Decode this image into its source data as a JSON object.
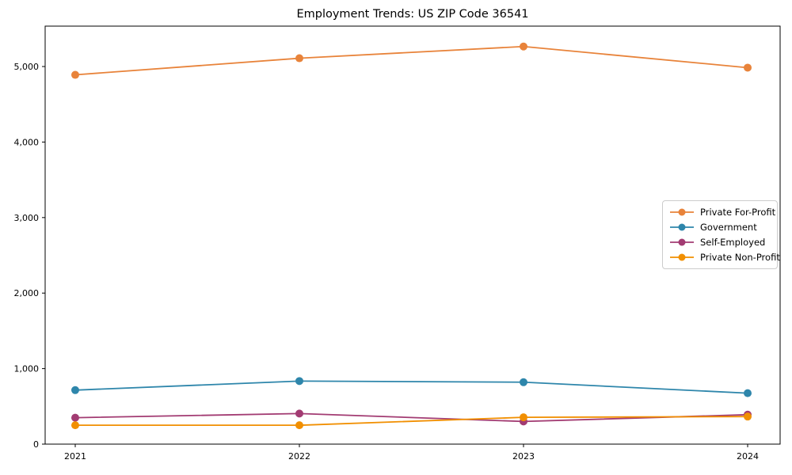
{
  "title": "Employment Trends: US ZIP Code 36541",
  "axes": {
    "x_tick_labels": [
      "2021",
      "2022",
      "2023",
      "2024"
    ],
    "y_tick_labels": [
      "0",
      "1,000",
      "2,000",
      "3,000",
      "4,000",
      "5,000"
    ],
    "y_tick_values": [
      0,
      1000,
      2000,
      3000,
      4000,
      5000
    ]
  },
  "legend": {
    "entries": [
      "Private For-Profit",
      "Government",
      "Self-Employed",
      "Private Non-Profit"
    ]
  },
  "chart_data": {
    "type": "line",
    "title": "Employment Trends: US ZIP Code 36541",
    "categories": [
      "2021",
      "2022",
      "2023",
      "2024"
    ],
    "x": [
      2021,
      2022,
      2023,
      2024
    ],
    "series": [
      {
        "name": "Private For-Profit",
        "color": "#E8833A",
        "values": [
          4890,
          5110,
          5265,
          4985
        ]
      },
      {
        "name": "Government",
        "color": "#2E86AB",
        "values": [
          715,
          835,
          820,
          675
        ]
      },
      {
        "name": "Self-Employed",
        "color": "#A23B72",
        "values": [
          350,
          405,
          300,
          390
        ]
      },
      {
        "name": "Private Non-Profit",
        "color": "#F18F01",
        "values": [
          250,
          250,
          355,
          365
        ]
      }
    ],
    "xlabel": "",
    "ylabel": "",
    "ylim": [
      0,
      5535
    ],
    "grid": false,
    "legend_position": "center right",
    "marker": "circle",
    "line_width": 1.8,
    "marker_radius": 5
  }
}
